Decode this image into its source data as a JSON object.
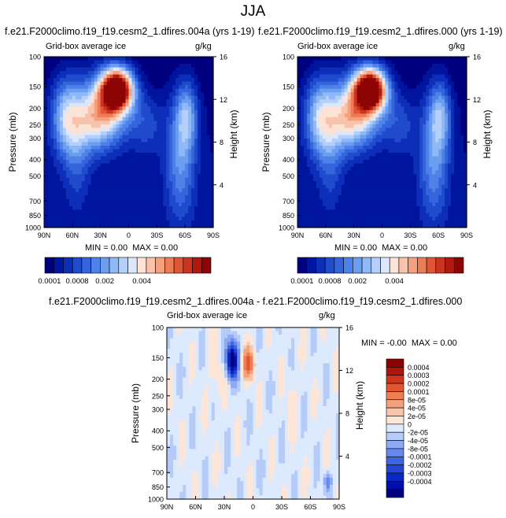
{
  "page_title": "JJA",
  "colors": {
    "seq": [
      "#00007f",
      "#00159e",
      "#0c2eb8",
      "#1f4bcc",
      "#3565dc",
      "#4f82e8",
      "#6c9ef0",
      "#8eb8f6",
      "#b4d0fa",
      "#dbe7fc",
      "#fde3d6",
      "#f8c3aa",
      "#f3a07e",
      "#ec7c56",
      "#e05535",
      "#cd3420",
      "#b01a0e",
      "#8e0505"
    ],
    "diff": [
      "#000080",
      "#0010a8",
      "#0a28c4",
      "#2346d6",
      "#3f66e2",
      "#6688ec",
      "#8eaaf3",
      "#b5cbf8",
      "#dde9fc",
      "#fde6d8",
      "#f9c6ab",
      "#f4a27c",
      "#ed7d53",
      "#e15630",
      "#d0331a",
      "#b01509",
      "#8c0303"
    ]
  },
  "chart_data": [
    {
      "type": "heatmap",
      "title": "f.e21.F2000climo.f19_f19.cesm2_1.dfires.004a (yrs 1-19)",
      "subtitle_left": "Grid-box average ice",
      "subtitle_right": "g/kg",
      "xlabel": "",
      "ylabel": "Pressure (mb)",
      "ylabel_right": "Height (km)",
      "x_ticks": [
        "90N",
        "60N",
        "30N",
        "0",
        "30S",
        "60S",
        "90S"
      ],
      "x_range": [
        90,
        -90
      ],
      "y_ticks": [
        100,
        150,
        200,
        250,
        300,
        400,
        500,
        700,
        850,
        1000
      ],
      "y_range": [
        1000,
        100
      ],
      "y_scale": "log",
      "height_ticks": [
        16,
        12,
        8,
        4
      ],
      "stats": {
        "min_label": "MIN =",
        "min": "0.00",
        "max_label": "MAX =",
        "max": "0.00"
      },
      "colorbar_labels": [
        "0.0001",
        "0.0008",
        "0.002",
        "0.004"
      ]
    },
    {
      "type": "heatmap",
      "title": "f.e21.F2000climo.f19_f19.cesm2_1.dfires.000 (yrs 1-19)",
      "subtitle_left": "Grid-box average ice",
      "subtitle_right": "g/kg",
      "xlabel": "",
      "ylabel": "Pressure (mb)",
      "ylabel_right": "Height (km)",
      "x_ticks": [
        "90N",
        "60N",
        "30N",
        "0",
        "30S",
        "60S",
        "90S"
      ],
      "x_range": [
        90,
        -90
      ],
      "y_ticks": [
        100,
        150,
        200,
        250,
        300,
        400,
        500,
        700,
        850,
        1000
      ],
      "y_range": [
        1000,
        100
      ],
      "y_scale": "log",
      "height_ticks": [
        16,
        12,
        8,
        4
      ],
      "stats": {
        "min_label": "MIN =",
        "min": "0.00",
        "max_label": "MAX =",
        "max": "0.00"
      },
      "colorbar_labels": [
        "0.0001",
        "0.0008",
        "0.002",
        "0.004"
      ]
    },
    {
      "type": "heatmap",
      "title": "f.e21.F2000climo.f19_f19.cesm2_1.dfires.004a - f.e21.F2000climo.f19_f19.cesm2_1.dfires.000",
      "subtitle_left": "Grid-box average ice",
      "subtitle_right": "g/kg",
      "xlabel": "",
      "ylabel": "Pressure (mb)",
      "ylabel_right": "Height (km)",
      "x_ticks": [
        "90N",
        "60N",
        "30N",
        "0",
        "30S",
        "60S",
        "90S"
      ],
      "x_range": [
        90,
        -90
      ],
      "y_ticks": [
        100,
        150,
        200,
        250,
        300,
        400,
        500,
        700,
        850,
        1000
      ],
      "y_range": [
        1000,
        100
      ],
      "y_scale": "log",
      "height_ticks": [
        16,
        12,
        8,
        4
      ],
      "stats": {
        "min_label": "MIN =",
        "min": "-0.00",
        "max_label": "MAX =",
        "max": "0.00"
      },
      "colorbar_labels": [
        "0.0004",
        "0.0003",
        "0.0002",
        "0.0001",
        "8e-05",
        "4e-05",
        "2e-05",
        "0",
        "-2e-05",
        "-4e-05",
        "-8e-05",
        "-0.0001",
        "-0.0002",
        "-0.0003",
        "-0.0004"
      ]
    }
  ]
}
